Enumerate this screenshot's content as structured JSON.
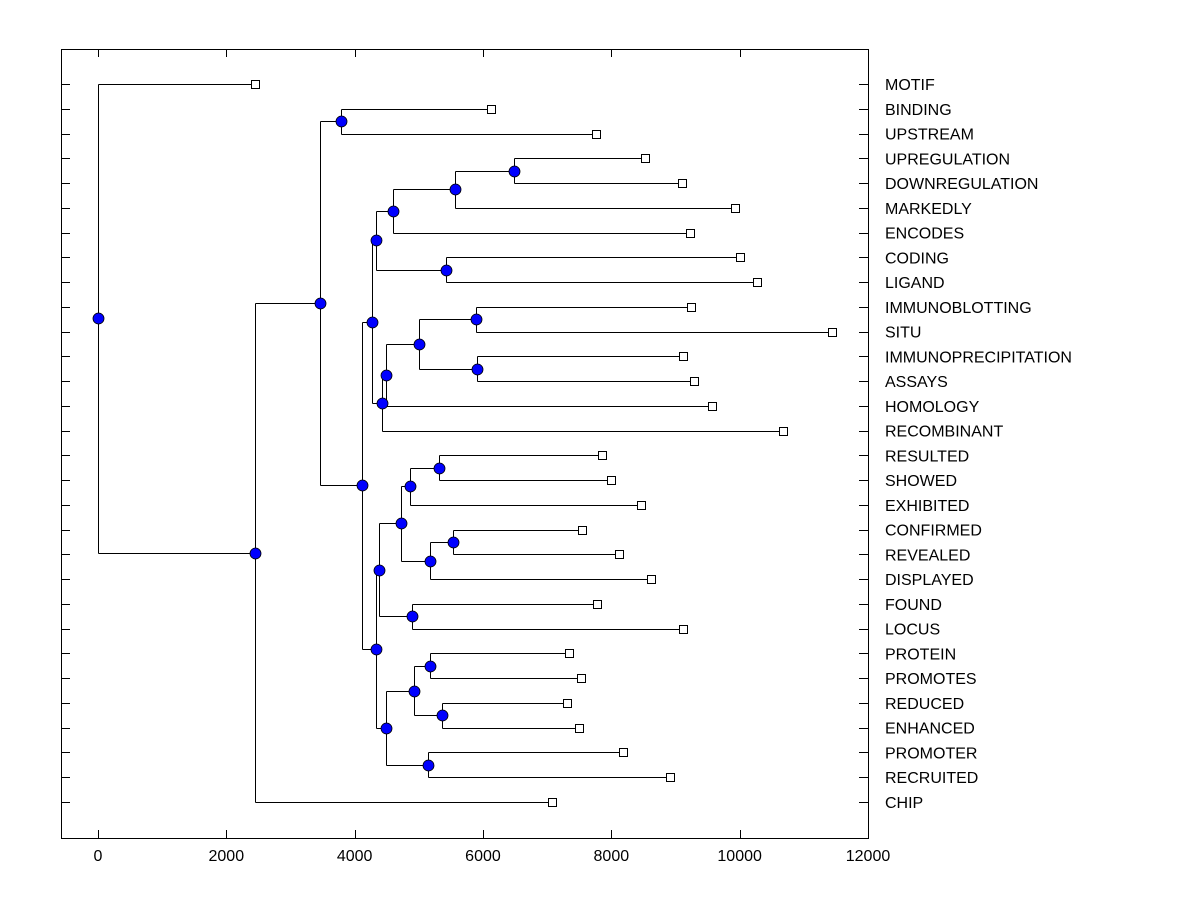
{
  "chart_data": {
    "type": "dendrogram",
    "title": "",
    "xlabel": "",
    "ylabel": "",
    "xlim": [
      -576,
      12000
    ],
    "x_ticks": [
      0,
      2000,
      4000,
      6000,
      8000,
      10000,
      12000
    ],
    "x_tick_labels": [
      "0",
      "2000",
      "4000",
      "6000",
      "8000",
      "10000",
      "12000"
    ],
    "grid": false,
    "leaf_marker": "open-square",
    "node_marker": "filled-circle",
    "node_color": "#0000ff",
    "line_color": "#000000",
    "leaves": [
      {
        "id": "MOTIF",
        "label": "MOTIF",
        "value": 2445
      },
      {
        "id": "BINDING",
        "label": "BINDING",
        "value": 6121
      },
      {
        "id": "UPSTREAM",
        "label": "UPSTREAM",
        "value": 7757
      },
      {
        "id": "UPREGULATION",
        "label": "UPREGULATION",
        "value": 8520
      },
      {
        "id": "DOWNREGULATION",
        "label": "DOWNREGULATION",
        "value": 9097
      },
      {
        "id": "MARKEDLY",
        "label": "MARKEDLY",
        "value": 9922
      },
      {
        "id": "ENCODES",
        "label": "ENCODES",
        "value": 9221
      },
      {
        "id": "CODING",
        "label": "CODING",
        "value": 10000
      },
      {
        "id": "LIGAND",
        "label": "LIGAND",
        "value": 10265
      },
      {
        "id": "IMMUNOBLOTTING",
        "label": "IMMUNOBLOTTING",
        "value": 9237
      },
      {
        "id": "SITU",
        "label": "SITU",
        "value": 11433
      },
      {
        "id": "IMMUNOPRECIPITATION",
        "label": "IMMUNOPRECIPITATION",
        "value": 9112
      },
      {
        "id": "ASSAYS",
        "label": "ASSAYS",
        "value": 9283
      },
      {
        "id": "HOMOLOGY",
        "label": "HOMOLOGY",
        "value": 9564
      },
      {
        "id": "RECOMBINANT",
        "label": "RECOMBINANT",
        "value": 10670
      },
      {
        "id": "RESULTED",
        "label": "RESULTED",
        "value": 7850
      },
      {
        "id": "SHOWED",
        "label": "SHOWED",
        "value": 7991
      },
      {
        "id": "EXHIBITED",
        "label": "EXHIBITED",
        "value": 8458
      },
      {
        "id": "CONFIRMED",
        "label": "CONFIRMED",
        "value": 7539
      },
      {
        "id": "REVEALED",
        "label": "REVEALED",
        "value": 8115
      },
      {
        "id": "DISPLAYED",
        "label": "DISPLAYED",
        "value": 8614
      },
      {
        "id": "FOUND",
        "label": "FOUND",
        "value": 7773
      },
      {
        "id": "LOCUS",
        "label": "LOCUS",
        "value": 9112
      },
      {
        "id": "PROTEIN",
        "label": "PROTEIN",
        "value": 7336
      },
      {
        "id": "PROMOTES",
        "label": "PROMOTES",
        "value": 7523
      },
      {
        "id": "REDUCED",
        "label": "REDUCED",
        "value": 7305
      },
      {
        "id": "ENHANCED",
        "label": "ENHANCED",
        "value": 7492
      },
      {
        "id": "PROMOTER",
        "label": "PROMOTER",
        "value": 8178
      },
      {
        "id": "RECRUITED",
        "label": "RECRUITED",
        "value": 8910
      },
      {
        "id": "CHIP",
        "label": "CHIP",
        "value": 7072
      }
    ],
    "nodes": [
      {
        "id": "n_binding_upstream",
        "value": 3785,
        "children": [
          "BINDING",
          "UPSTREAM"
        ]
      },
      {
        "id": "n_upreg_downreg",
        "value": 6480,
        "children": [
          "UPREGULATION",
          "DOWNREGULATION"
        ]
      },
      {
        "id": "n_markedly",
        "value": 5561,
        "children": [
          "n_upreg_downreg",
          "MARKEDLY"
        ]
      },
      {
        "id": "n_encodes",
        "value": 4595,
        "children": [
          "n_markedly",
          "ENCODES"
        ]
      },
      {
        "id": "n_coding_ligand",
        "value": 5421,
        "children": [
          "CODING",
          "LIGAND"
        ]
      },
      {
        "id": "n_gene_group",
        "value": 4330,
        "children": [
          "n_encodes",
          "n_coding_ligand"
        ]
      },
      {
        "id": "n_blot_situ",
        "value": 5888,
        "children": [
          "IMMUNOBLOTTING",
          "SITU"
        ]
      },
      {
        "id": "n_ip_assays",
        "value": 5903,
        "children": [
          "IMMUNOPRECIPITATION",
          "ASSAYS"
        ]
      },
      {
        "id": "n_methods",
        "value": 5000,
        "children": [
          "n_blot_situ",
          "n_ip_assays"
        ]
      },
      {
        "id": "n_homology",
        "value": 4486,
        "children": [
          "n_methods",
          "HOMOLOGY"
        ]
      },
      {
        "id": "n_recombinant",
        "value": 4424,
        "children": [
          "n_homology",
          "RECOMBINANT"
        ]
      },
      {
        "id": "n_upper_mid",
        "value": 4268,
        "children": [
          "n_gene_group",
          "n_recombinant"
        ]
      },
      {
        "id": "n_resulted_showed",
        "value": 5311,
        "children": [
          "RESULTED",
          "SHOWED"
        ]
      },
      {
        "id": "n_exhibited",
        "value": 4860,
        "children": [
          "n_resulted_showed",
          "EXHIBITED"
        ]
      },
      {
        "id": "n_confirmed_revealed",
        "value": 5530,
        "children": [
          "CONFIRMED",
          "REVEALED"
        ]
      },
      {
        "id": "n_displayed",
        "value": 5171,
        "children": [
          "n_confirmed_revealed",
          "DISPLAYED"
        ]
      },
      {
        "id": "n_verbs",
        "value": 4720,
        "children": [
          "n_exhibited",
          "n_displayed"
        ]
      },
      {
        "id": "n_found_locus",
        "value": 4891,
        "children": [
          "FOUND",
          "LOCUS"
        ]
      },
      {
        "id": "n_verbs_found",
        "value": 4377,
        "children": [
          "n_verbs",
          "n_found_locus"
        ]
      },
      {
        "id": "n_protein_promotes",
        "value": 5171,
        "children": [
          "PROTEIN",
          "PROMOTES"
        ]
      },
      {
        "id": "n_reduced_enhanced",
        "value": 5358,
        "children": [
          "REDUCED",
          "ENHANCED"
        ]
      },
      {
        "id": "n_regulation",
        "value": 4922,
        "children": [
          "n_protein_promotes",
          "n_reduced_enhanced"
        ]
      },
      {
        "id": "n_promoter_recruited",
        "value": 5140,
        "children": [
          "PROMOTER",
          "RECRUITED"
        ]
      },
      {
        "id": "n_lower_reg",
        "value": 4486,
        "children": [
          "n_regulation",
          "n_promoter_recruited"
        ]
      },
      {
        "id": "n_lower",
        "value": 4330,
        "children": [
          "n_verbs_found",
          "n_lower_reg"
        ]
      },
      {
        "id": "n_mid",
        "value": 4112,
        "children": [
          "n_upper_mid",
          "n_lower"
        ]
      },
      {
        "id": "n_upper",
        "value": 3458,
        "children": [
          "n_binding_upstream",
          "n_mid"
        ]
      },
      {
        "id": "n_chip",
        "value": 2445,
        "children": [
          "n_upper",
          "CHIP"
        ]
      },
      {
        "id": "root",
        "value": 0,
        "children": [
          "MOTIF",
          "n_chip"
        ]
      }
    ]
  }
}
